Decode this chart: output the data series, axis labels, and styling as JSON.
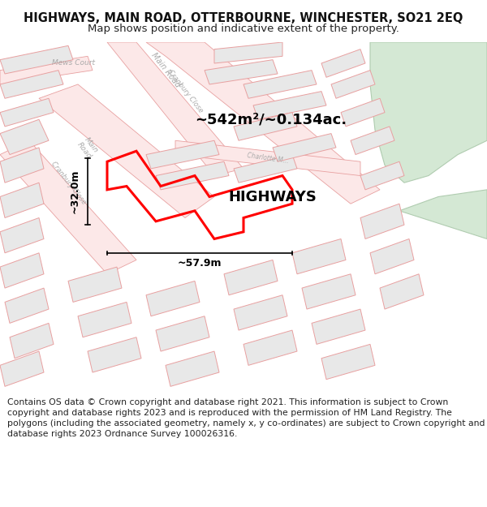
{
  "title": "HIGHWAYS, MAIN ROAD, OTTERBOURNE, WINCHESTER, SO21 2EQ",
  "subtitle": "Map shows position and indicative extent of the property.",
  "footer": "Contains OS data © Crown copyright and database right 2021. This information is subject to Crown copyright and database rights 2023 and is reproduced with the permission of HM Land Registry. The polygons (including the associated geometry, namely x, y co-ordinates) are subject to Crown copyright and database rights 2023 Ordnance Survey 100026316.",
  "bg_color": "#ffffff",
  "road_outline_color": "#e8a0a0",
  "road_fill_color": "#fce8e8",
  "building_fill": "#e8e8e8",
  "building_edge": "#cccccc",
  "green_fill": "#d4e8d4",
  "green_edge": "#b0ccb0",
  "highlight_edge": "#ff0000",
  "highlight_lw": 2.2,
  "label_color": "#000000",
  "area_text": "~542m²/~0.134ac.",
  "name_text": "HIGHWAYS",
  "width_text": "~57.9m",
  "height_text": "~32.0m",
  "title_fontsize": 10.5,
  "subtitle_fontsize": 9.5,
  "footer_fontsize": 7.8,
  "area_fontsize": 13,
  "name_fontsize": 13,
  "dim_fontsize": 9,
  "road_label_color": "#aaaaaa",
  "road_label_fontsize": 7
}
